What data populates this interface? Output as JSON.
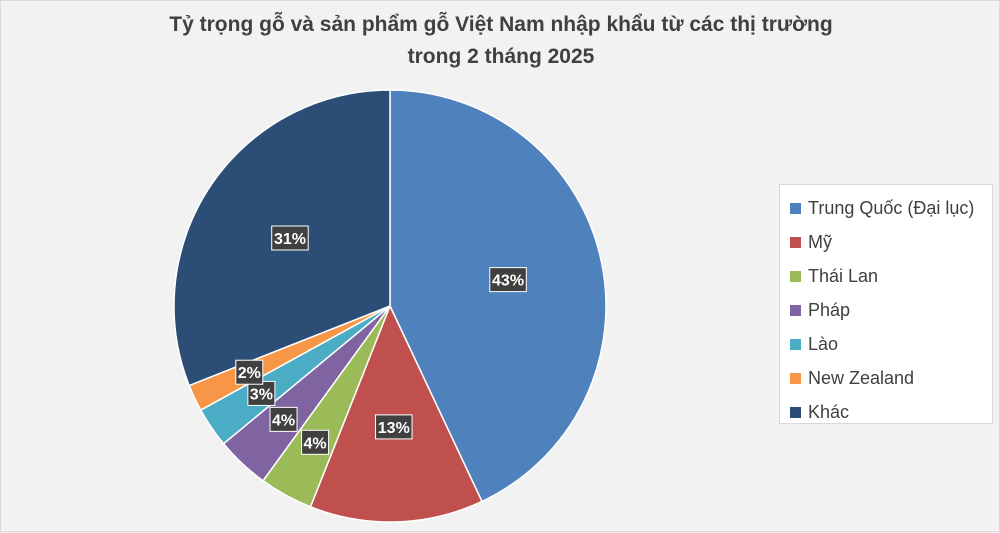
{
  "chart_data": {
    "type": "pie",
    "title_line1": "Tỷ trọng gỗ và sản phẩm gỗ Việt Nam nhập khẩu từ các thị trường",
    "title_line2": "trong 2 tháng 2025",
    "legend_position": "right",
    "slices": [
      {
        "name": "Trung Quốc (Đại lục)",
        "value": 43,
        "label": "43%",
        "color": "#4f81bd"
      },
      {
        "name": "Mỹ",
        "value": 13,
        "label": "13%",
        "color": "#c0504d"
      },
      {
        "name": "Thái Lan",
        "value": 4,
        "label": "4%",
        "color": "#9bbb59"
      },
      {
        "name": "Pháp",
        "value": 4,
        "label": "4%",
        "color": "#8064a2"
      },
      {
        "name": "Lào",
        "value": 3,
        "label": "3%",
        "color": "#4bacc6"
      },
      {
        "name": "New Zealand",
        "value": 2,
        "label": "2%",
        "color": "#f79646"
      },
      {
        "name": "Khác",
        "value": 31,
        "label": "31%",
        "color": "#2c4d75"
      }
    ]
  }
}
